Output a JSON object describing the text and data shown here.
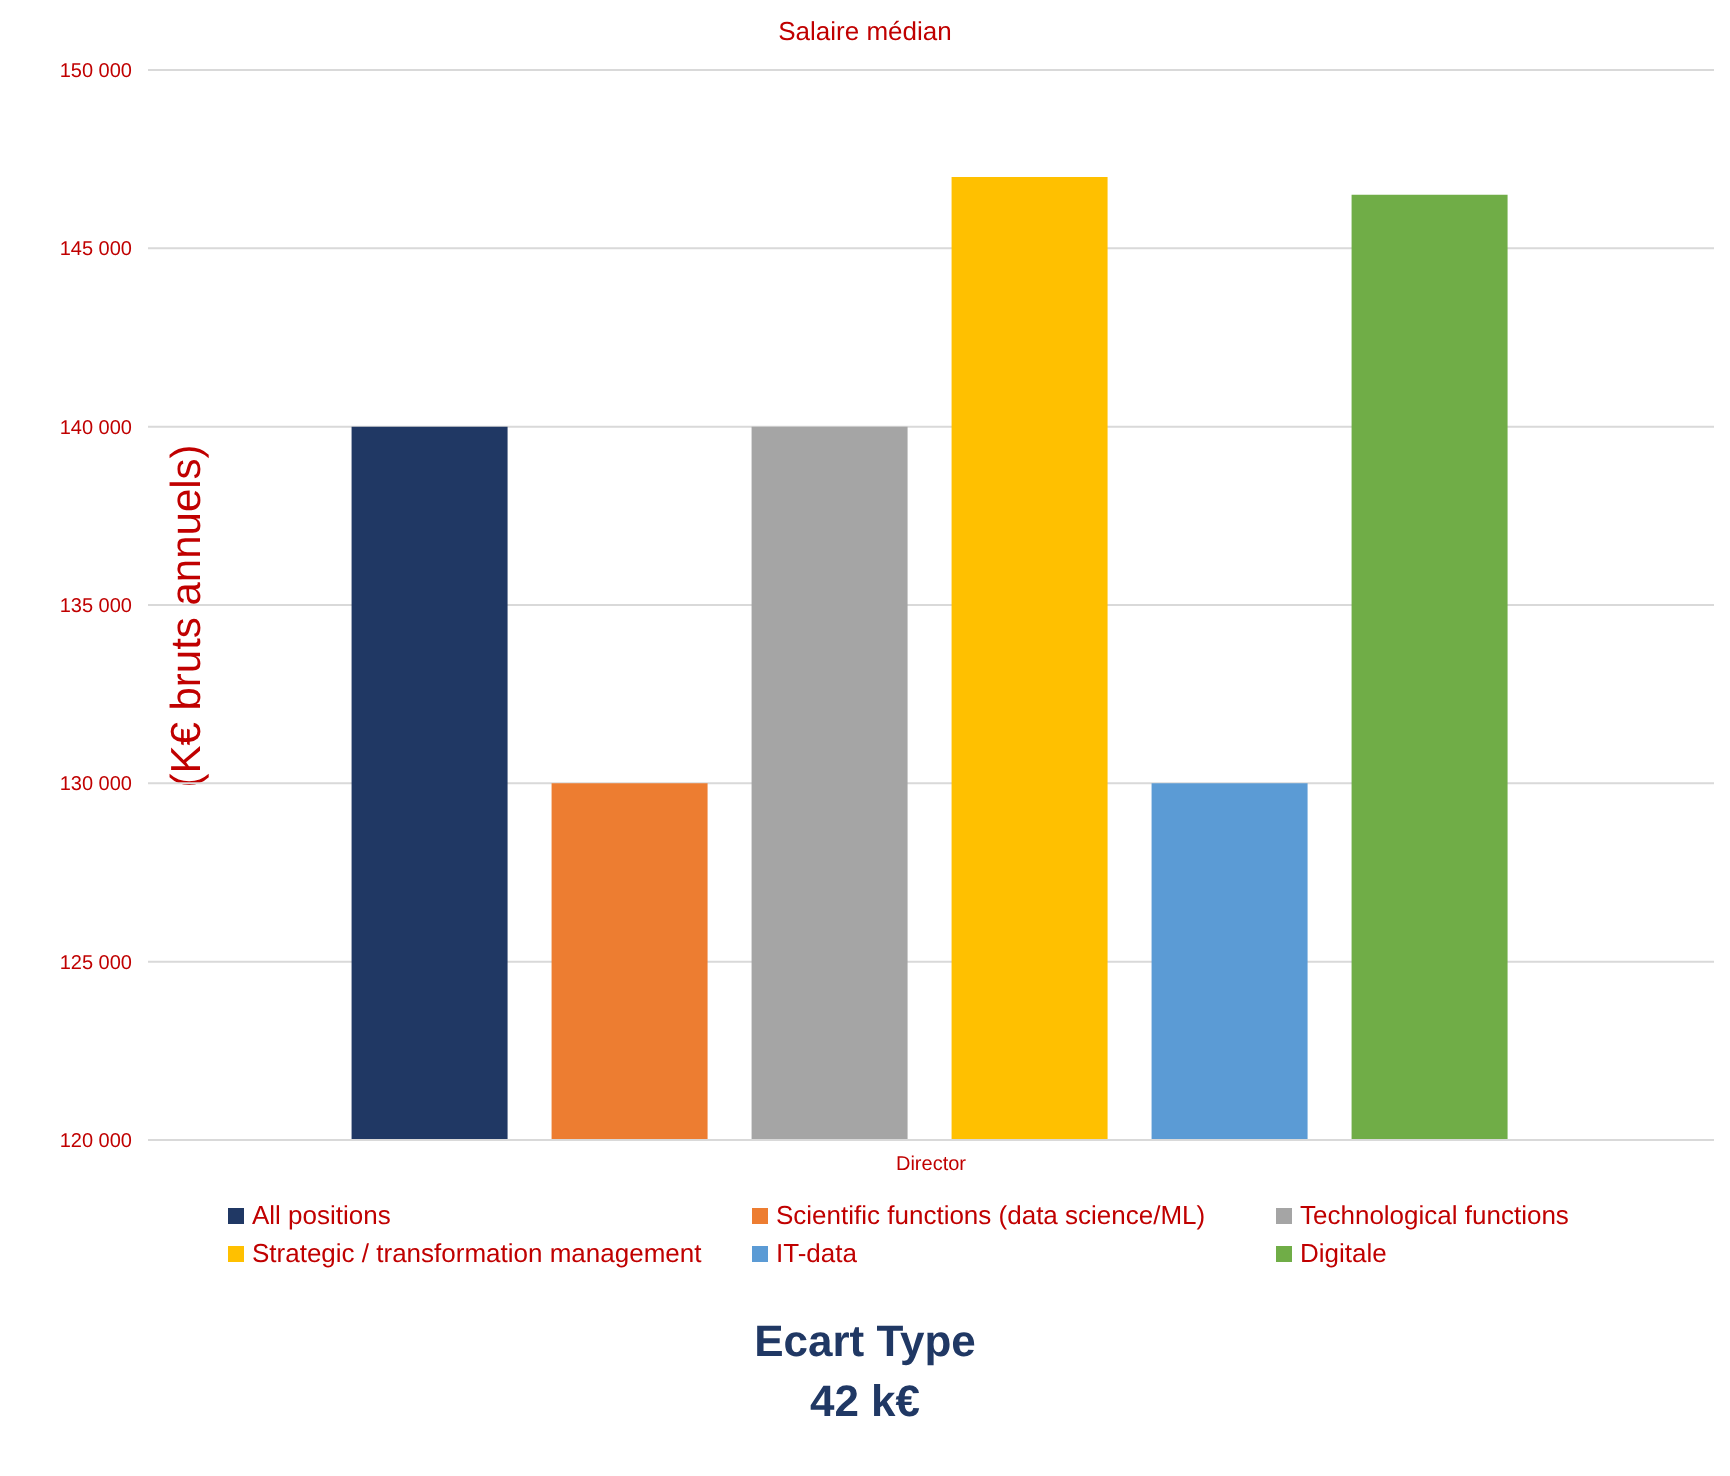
{
  "chart_data": {
    "type": "bar",
    "title": "Salaire médian",
    "ylabel": "(K€ bruts annuels)",
    "categories": [
      "Director"
    ],
    "series": [
      {
        "name": "All positions",
        "color": "#203864",
        "values": [
          140000
        ]
      },
      {
        "name": "Scientific functions (data science/ML)",
        "color": "#ed7d31",
        "values": [
          130000
        ]
      },
      {
        "name": "Technological functions",
        "color": "#a5a5a5",
        "values": [
          140000
        ]
      },
      {
        "name": "Strategic / transformation management",
        "color": "#ffc000",
        "values": [
          147000
        ]
      },
      {
        "name": "IT-data",
        "color": "#5b9bd5",
        "values": [
          130000
        ]
      },
      {
        "name": "Digitale",
        "color": "#70ad47",
        "values": [
          146500
        ]
      }
    ],
    "ylim": [
      120000,
      150000
    ],
    "yticks": [
      {
        "value": 120000,
        "label": "120 000"
      },
      {
        "value": 125000,
        "label": "125 000"
      },
      {
        "value": 130000,
        "label": "130 000"
      },
      {
        "value": 135000,
        "label": "135 000"
      },
      {
        "value": 140000,
        "label": "140 000"
      },
      {
        "value": 145000,
        "label": "145 000"
      },
      {
        "value": 150000,
        "label": "150 000"
      }
    ],
    "grid": "y",
    "legend": "bottom",
    "annotations": [
      "Ecart Type",
      "42 k€"
    ]
  }
}
